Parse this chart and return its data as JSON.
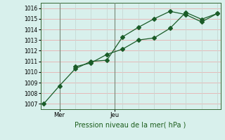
{
  "xlabel": "Pression niveau de la mer( hPa )",
  "ylim": [
    1006.5,
    1016.5
  ],
  "yticks": [
    1007,
    1008,
    1009,
    1010,
    1011,
    1012,
    1013,
    1014,
    1015,
    1016
  ],
  "bg_color": "#d8f0ec",
  "grid_color_h": "#e8b0b0",
  "grid_color_v": "#c8d8d4",
  "line_color": "#1a5c28",
  "vline_color": "#778877",
  "series1_x": [
    0,
    1,
    2,
    3,
    4,
    5,
    6,
    7,
    8,
    9,
    10,
    11
  ],
  "series1_y": [
    1007.0,
    1008.7,
    1010.3,
    1011.0,
    1011.1,
    1013.3,
    1014.2,
    1015.0,
    1015.7,
    1015.4,
    1014.7,
    1015.5
  ],
  "series2_x": [
    2,
    3,
    4,
    5,
    6,
    7,
    8,
    9,
    10,
    11
  ],
  "series2_y": [
    1010.5,
    1010.85,
    1011.65,
    1012.15,
    1013.0,
    1013.2,
    1014.1,
    1015.6,
    1014.95,
    1015.5
  ],
  "mer_x": 1.0,
  "jeu_x": 4.5,
  "n_points": 12,
  "xlim": [
    -0.2,
    11.2
  ]
}
